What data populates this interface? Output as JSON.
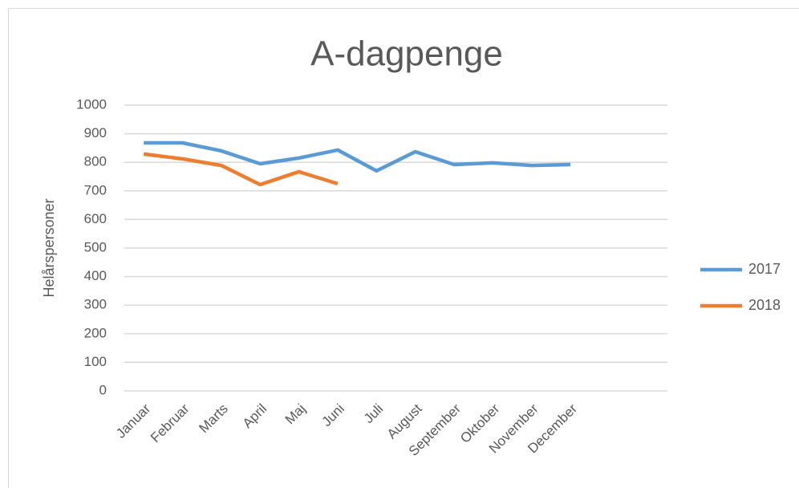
{
  "chart_data": {
    "type": "line",
    "title": "A-dagpenge",
    "y_label": "Helårspersoner",
    "categories": [
      "Januar",
      "Februar",
      "Marts",
      "April",
      "Maj",
      "Juni",
      "Juli",
      "August",
      "September",
      "Oktober",
      "November",
      "December",
      null,
      null
    ],
    "series": [
      {
        "name": "2017",
        "color": "#5b9bd5",
        "values": [
          868,
          868,
          840,
          795,
          815,
          843,
          770,
          837,
          792,
          798,
          789,
          792,
          null,
          null
        ]
      },
      {
        "name": "2018",
        "color": "#ed7d31",
        "values": [
          829,
          812,
          789,
          722,
          767,
          725,
          null,
          null,
          null,
          null,
          null,
          null,
          null,
          null
        ]
      }
    ],
    "ylim": [
      0,
      1000
    ],
    "yticks": [
      0,
      100,
      200,
      300,
      400,
      500,
      600,
      700,
      800,
      900,
      1000
    ],
    "grid": true,
    "legend": "right"
  }
}
